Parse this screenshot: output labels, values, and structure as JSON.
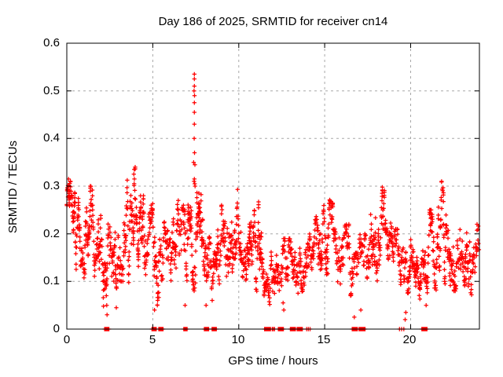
{
  "chart_data": {
    "type": "scatter",
    "title": "Day 186 of 2025, SRMTID for receiver cn14",
    "xlabel": "GPS time / hours",
    "ylabel": "SRMTID / TECUs",
    "xlim": [
      0,
      24
    ],
    "ylim": [
      0,
      0.6
    ],
    "xticks": [
      0,
      5,
      10,
      15,
      20
    ],
    "xtick_labels": [
      "0",
      "5",
      "10",
      "15",
      "20"
    ],
    "yticks": [
      0,
      0.1,
      0.2,
      0.3,
      0.4,
      0.5,
      0.6
    ],
    "ytick_labels": [
      "0",
      "0.1",
      "0.2",
      "0.3",
      "0.4",
      "0.5",
      "0.6"
    ],
    "grid": {
      "show": true,
      "style": "dashed",
      "color": "#a8a8a8"
    },
    "legend": "none",
    "marker": {
      "shape": "plus",
      "color": "#ff0000",
      "size": 5.4,
      "stroke_width": 1.25
    },
    "series_name": "SRMTID",
    "seed": 186,
    "bins_format": [
      "hour_start",
      "y_min",
      "y_max",
      "n_samples"
    ],
    "bins": [
      [
        0.0,
        0.17,
        0.31,
        26
      ],
      [
        0.5,
        0.12,
        0.28,
        24
      ],
      [
        1.0,
        0.1,
        0.3,
        25
      ],
      [
        1.5,
        0.09,
        0.26,
        23
      ],
      [
        2.0,
        0.03,
        0.23,
        20
      ],
      [
        2.5,
        0.08,
        0.26,
        22
      ],
      [
        3.0,
        0.1,
        0.3,
        23
      ],
      [
        3.5,
        0.08,
        0.34,
        25
      ],
      [
        4.0,
        0.1,
        0.28,
        24
      ],
      [
        4.5,
        0.07,
        0.26,
        22
      ],
      [
        5.0,
        0.05,
        0.28,
        21
      ],
      [
        5.5,
        0.05,
        0.23,
        20
      ],
      [
        6.0,
        0.09,
        0.27,
        23
      ],
      [
        6.5,
        0.06,
        0.26,
        22
      ],
      [
        7.0,
        0.08,
        0.31,
        25
      ],
      [
        7.5,
        0.09,
        0.3,
        25
      ],
      [
        8.0,
        0.06,
        0.25,
        21
      ],
      [
        8.5,
        0.07,
        0.23,
        21
      ],
      [
        9.0,
        0.09,
        0.26,
        23
      ],
      [
        9.5,
        0.1,
        0.3,
        24
      ],
      [
        10.0,
        0.09,
        0.26,
        23
      ],
      [
        10.5,
        0.11,
        0.28,
        24
      ],
      [
        11.0,
        0.07,
        0.3,
        23
      ],
      [
        11.5,
        0.03,
        0.18,
        17
      ],
      [
        12.0,
        0.04,
        0.18,
        18
      ],
      [
        12.5,
        0.04,
        0.19,
        19
      ],
      [
        13.0,
        0.07,
        0.2,
        19
      ],
      [
        13.5,
        0.07,
        0.22,
        19
      ],
      [
        14.0,
        0.09,
        0.23,
        21
      ],
      [
        14.5,
        0.1,
        0.28,
        23
      ],
      [
        15.0,
        0.08,
        0.28,
        23
      ],
      [
        15.5,
        0.05,
        0.21,
        20
      ],
      [
        16.0,
        0.07,
        0.22,
        20
      ],
      [
        16.5,
        0.02,
        0.16,
        16
      ],
      [
        17.0,
        0.04,
        0.2,
        18
      ],
      [
        17.5,
        0.09,
        0.31,
        24
      ],
      [
        18.0,
        0.1,
        0.3,
        24
      ],
      [
        18.5,
        0.09,
        0.25,
        23
      ],
      [
        19.0,
        0.05,
        0.21,
        19
      ],
      [
        19.5,
        0.02,
        0.18,
        18
      ],
      [
        20.0,
        0.09,
        0.22,
        21
      ],
      [
        20.5,
        0.05,
        0.18,
        19
      ],
      [
        21.0,
        0.07,
        0.25,
        21
      ],
      [
        21.5,
        0.1,
        0.31,
        24
      ],
      [
        22.0,
        0.09,
        0.28,
        23
      ],
      [
        22.5,
        0.08,
        0.23,
        21
      ],
      [
        23.0,
        0.09,
        0.26,
        23
      ],
      [
        23.5,
        0.07,
        0.22,
        21
      ]
    ],
    "spike_points": [
      [
        7.42,
        0.535
      ],
      [
        7.42,
        0.525
      ],
      [
        7.42,
        0.51
      ],
      [
        7.4,
        0.5
      ],
      [
        7.43,
        0.49
      ],
      [
        7.42,
        0.475
      ],
      [
        7.42,
        0.455
      ],
      [
        7.42,
        0.43
      ],
      [
        7.41,
        0.4
      ],
      [
        7.43,
        0.37
      ],
      [
        7.38,
        0.35
      ],
      [
        7.45,
        0.345
      ],
      [
        7.42,
        0.315
      ],
      [
        7.4,
        0.31
      ],
      [
        7.44,
        0.305
      ],
      [
        7.46,
        0.3
      ],
      [
        3.92,
        0.335
      ],
      [
        3.9,
        0.325
      ],
      [
        3.93,
        0.315
      ],
      [
        0.1,
        0.315
      ]
    ],
    "low_points": [
      [
        2.3,
        0.07
      ],
      [
        2.32,
        0.05
      ],
      [
        2.34,
        0.03
      ],
      [
        2.88,
        0.045
      ],
      [
        5.1,
        0.04
      ],
      [
        6.88,
        0.05
      ],
      [
        8.1,
        0.05
      ],
      [
        12.58,
        0.055
      ],
      [
        12.62,
        0.04
      ],
      [
        16.72,
        0.025
      ],
      [
        17.1,
        0.04
      ],
      [
        19.68,
        0.02
      ],
      [
        19.72,
        0.035
      ],
      [
        20.9,
        0.05
      ]
    ],
    "zero_runs_format": [
      "hour_start",
      "hour_end",
      "n_points_at_zero"
    ],
    "zero_runs": [
      [
        2.2,
        2.45,
        10
      ],
      [
        4.95,
        5.2,
        10
      ],
      [
        5.35,
        5.6,
        10
      ],
      [
        6.8,
        7.0,
        8
      ],
      [
        8.0,
        8.25,
        10
      ],
      [
        8.45,
        8.7,
        10
      ],
      [
        11.5,
        11.85,
        14
      ],
      [
        11.95,
        12.08,
        3
      ],
      [
        12.3,
        12.6,
        12
      ],
      [
        13.0,
        13.3,
        12
      ],
      [
        13.4,
        13.7,
        12
      ],
      [
        13.95,
        14.15,
        3
      ],
      [
        16.6,
        16.9,
        12
      ],
      [
        17.0,
        17.35,
        12
      ],
      [
        19.35,
        19.6,
        3
      ],
      [
        20.65,
        20.95,
        12
      ]
    ]
  },
  "colors": {
    "background": "#ffffff",
    "border": "#000000",
    "text": "#000000",
    "points": "#ff0000",
    "grid": "#a8a8a8"
  }
}
